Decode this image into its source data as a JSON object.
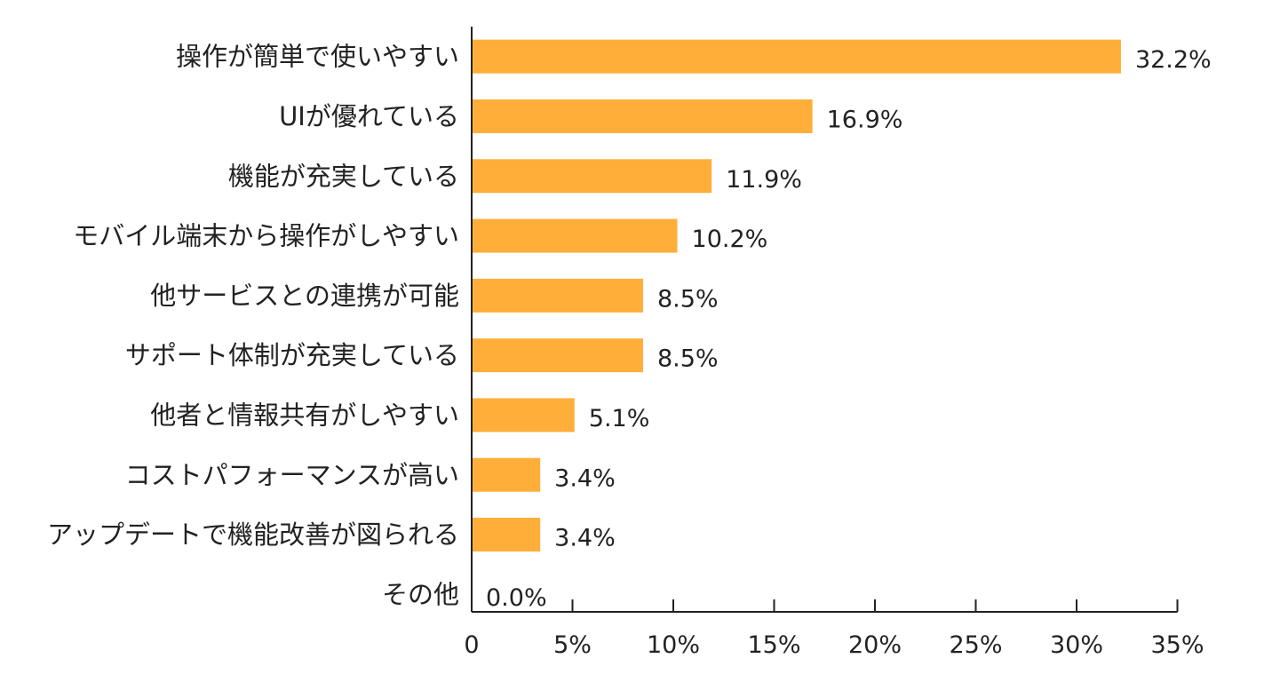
{
  "chart_data": {
    "type": "bar",
    "orientation": "horizontal",
    "categories": [
      "操作が簡単で使いやすい",
      "UIが優れている",
      "機能が充実している",
      "モバイル端末から操作がしやすい",
      "他サービスとの連携が可能",
      "サポート体制が充実している",
      "他者と情報共有がしやすい",
      "コストパフォーマンスが高い",
      "アップデートで機能改善が図られる",
      "その他"
    ],
    "values": [
      32.2,
      16.9,
      11.9,
      10.2,
      8.5,
      8.5,
      5.1,
      3.4,
      3.4,
      0.0
    ],
    "value_labels": [
      "32.2%",
      "16.9%",
      "11.9%",
      "10.2%",
      "8.5%",
      "8.5%",
      "5.1%",
      "3.4%",
      "3.4%",
      "0.0%"
    ],
    "x_ticks": [
      0,
      5,
      10,
      15,
      20,
      25,
      30,
      35
    ],
    "x_tick_labels": [
      "0",
      "5%",
      "10%",
      "15%",
      "20%",
      "25%",
      "30%",
      "35%"
    ],
    "xlim": [
      0,
      35
    ],
    "title": "",
    "xlabel": "",
    "ylabel": "",
    "grid": false,
    "legend": "none",
    "bar_color": "#FFAE3A",
    "axis_color": "#222222"
  }
}
